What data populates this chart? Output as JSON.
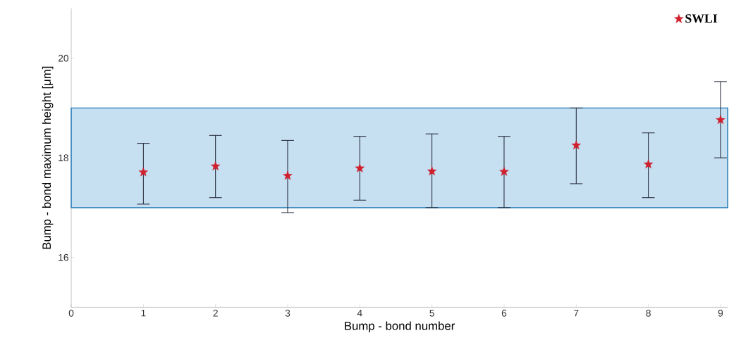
{
  "chart_data": {
    "type": "scatter",
    "xlabel": "Bump - bond number",
    "ylabel": "Bump - bond maximum height [μm]",
    "x": [
      1,
      2,
      3,
      4,
      5,
      6,
      7,
      8,
      9
    ],
    "series": [
      {
        "name": "SWLI",
        "color": "#d0202e",
        "values": [
          17.71,
          17.83,
          17.64,
          17.79,
          17.73,
          17.72,
          18.25,
          17.87,
          18.76
        ],
        "errors": [
          [
            17.07,
            18.29
          ],
          [
            17.2,
            18.45
          ],
          [
            16.9,
            18.35
          ],
          [
            17.15,
            18.43
          ],
          [
            17.0,
            18.48
          ],
          [
            17.0,
            18.43
          ],
          [
            17.48,
            19.0
          ],
          [
            17.2,
            18.5
          ],
          [
            18.0,
            19.53
          ]
        ]
      }
    ],
    "bands": [
      {
        "axis": "y",
        "from": 17,
        "to": 19,
        "color": "#c6dff1"
      }
    ],
    "xlim": [
      0,
      9.1
    ],
    "ylim": [
      15,
      21
    ],
    "xticks": [
      0,
      1,
      2,
      3,
      4,
      5,
      6,
      7,
      8,
      9
    ],
    "yticks": [
      16,
      18,
      20
    ],
    "marker": "star",
    "legend": "top right",
    "grid": false
  }
}
